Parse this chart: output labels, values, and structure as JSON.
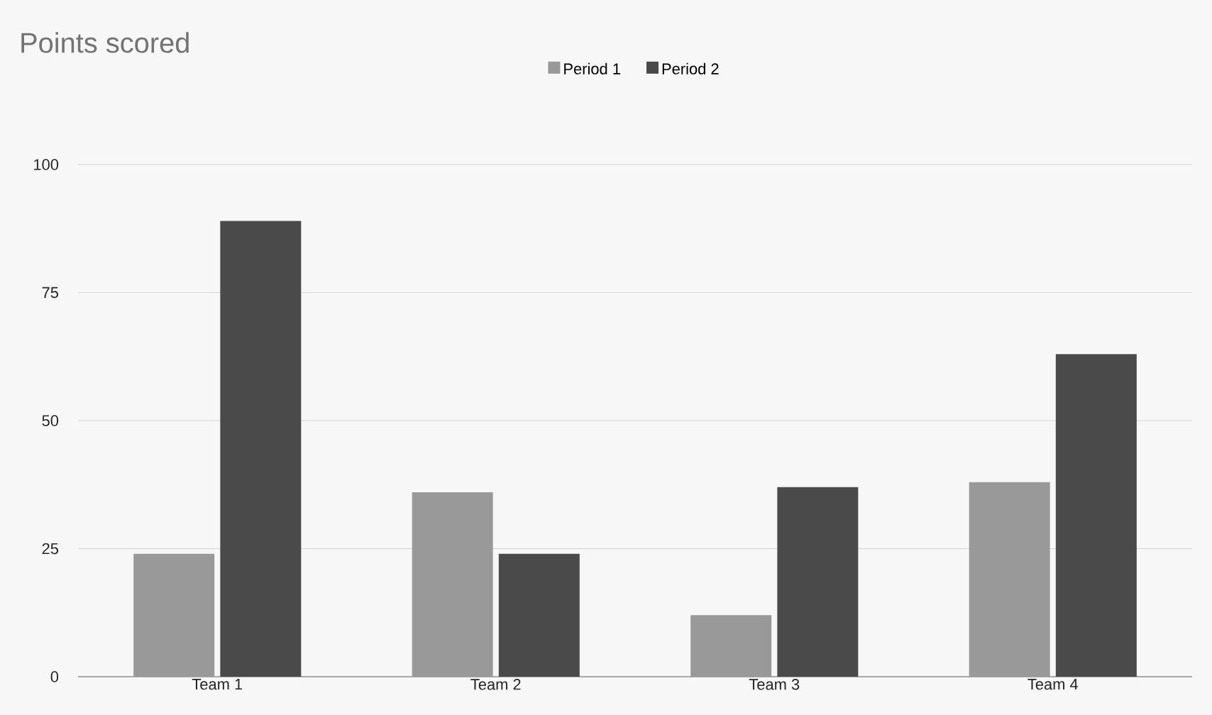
{
  "chart_data": {
    "type": "bar",
    "title": "Points scored",
    "categories": [
      "Team 1",
      "Team 2",
      "Team 3",
      "Team 4"
    ],
    "series": [
      {
        "name": "Period 1",
        "color": "#999999",
        "values": [
          24,
          36,
          12,
          38
        ]
      },
      {
        "name": "Period 2",
        "color": "#4a4a4a",
        "values": [
          89,
          24,
          37,
          63
        ]
      }
    ],
    "ylim": [
      0,
      100
    ],
    "yticks": [
      0,
      25,
      50,
      75,
      100
    ],
    "grid": "y",
    "legend": "top"
  }
}
